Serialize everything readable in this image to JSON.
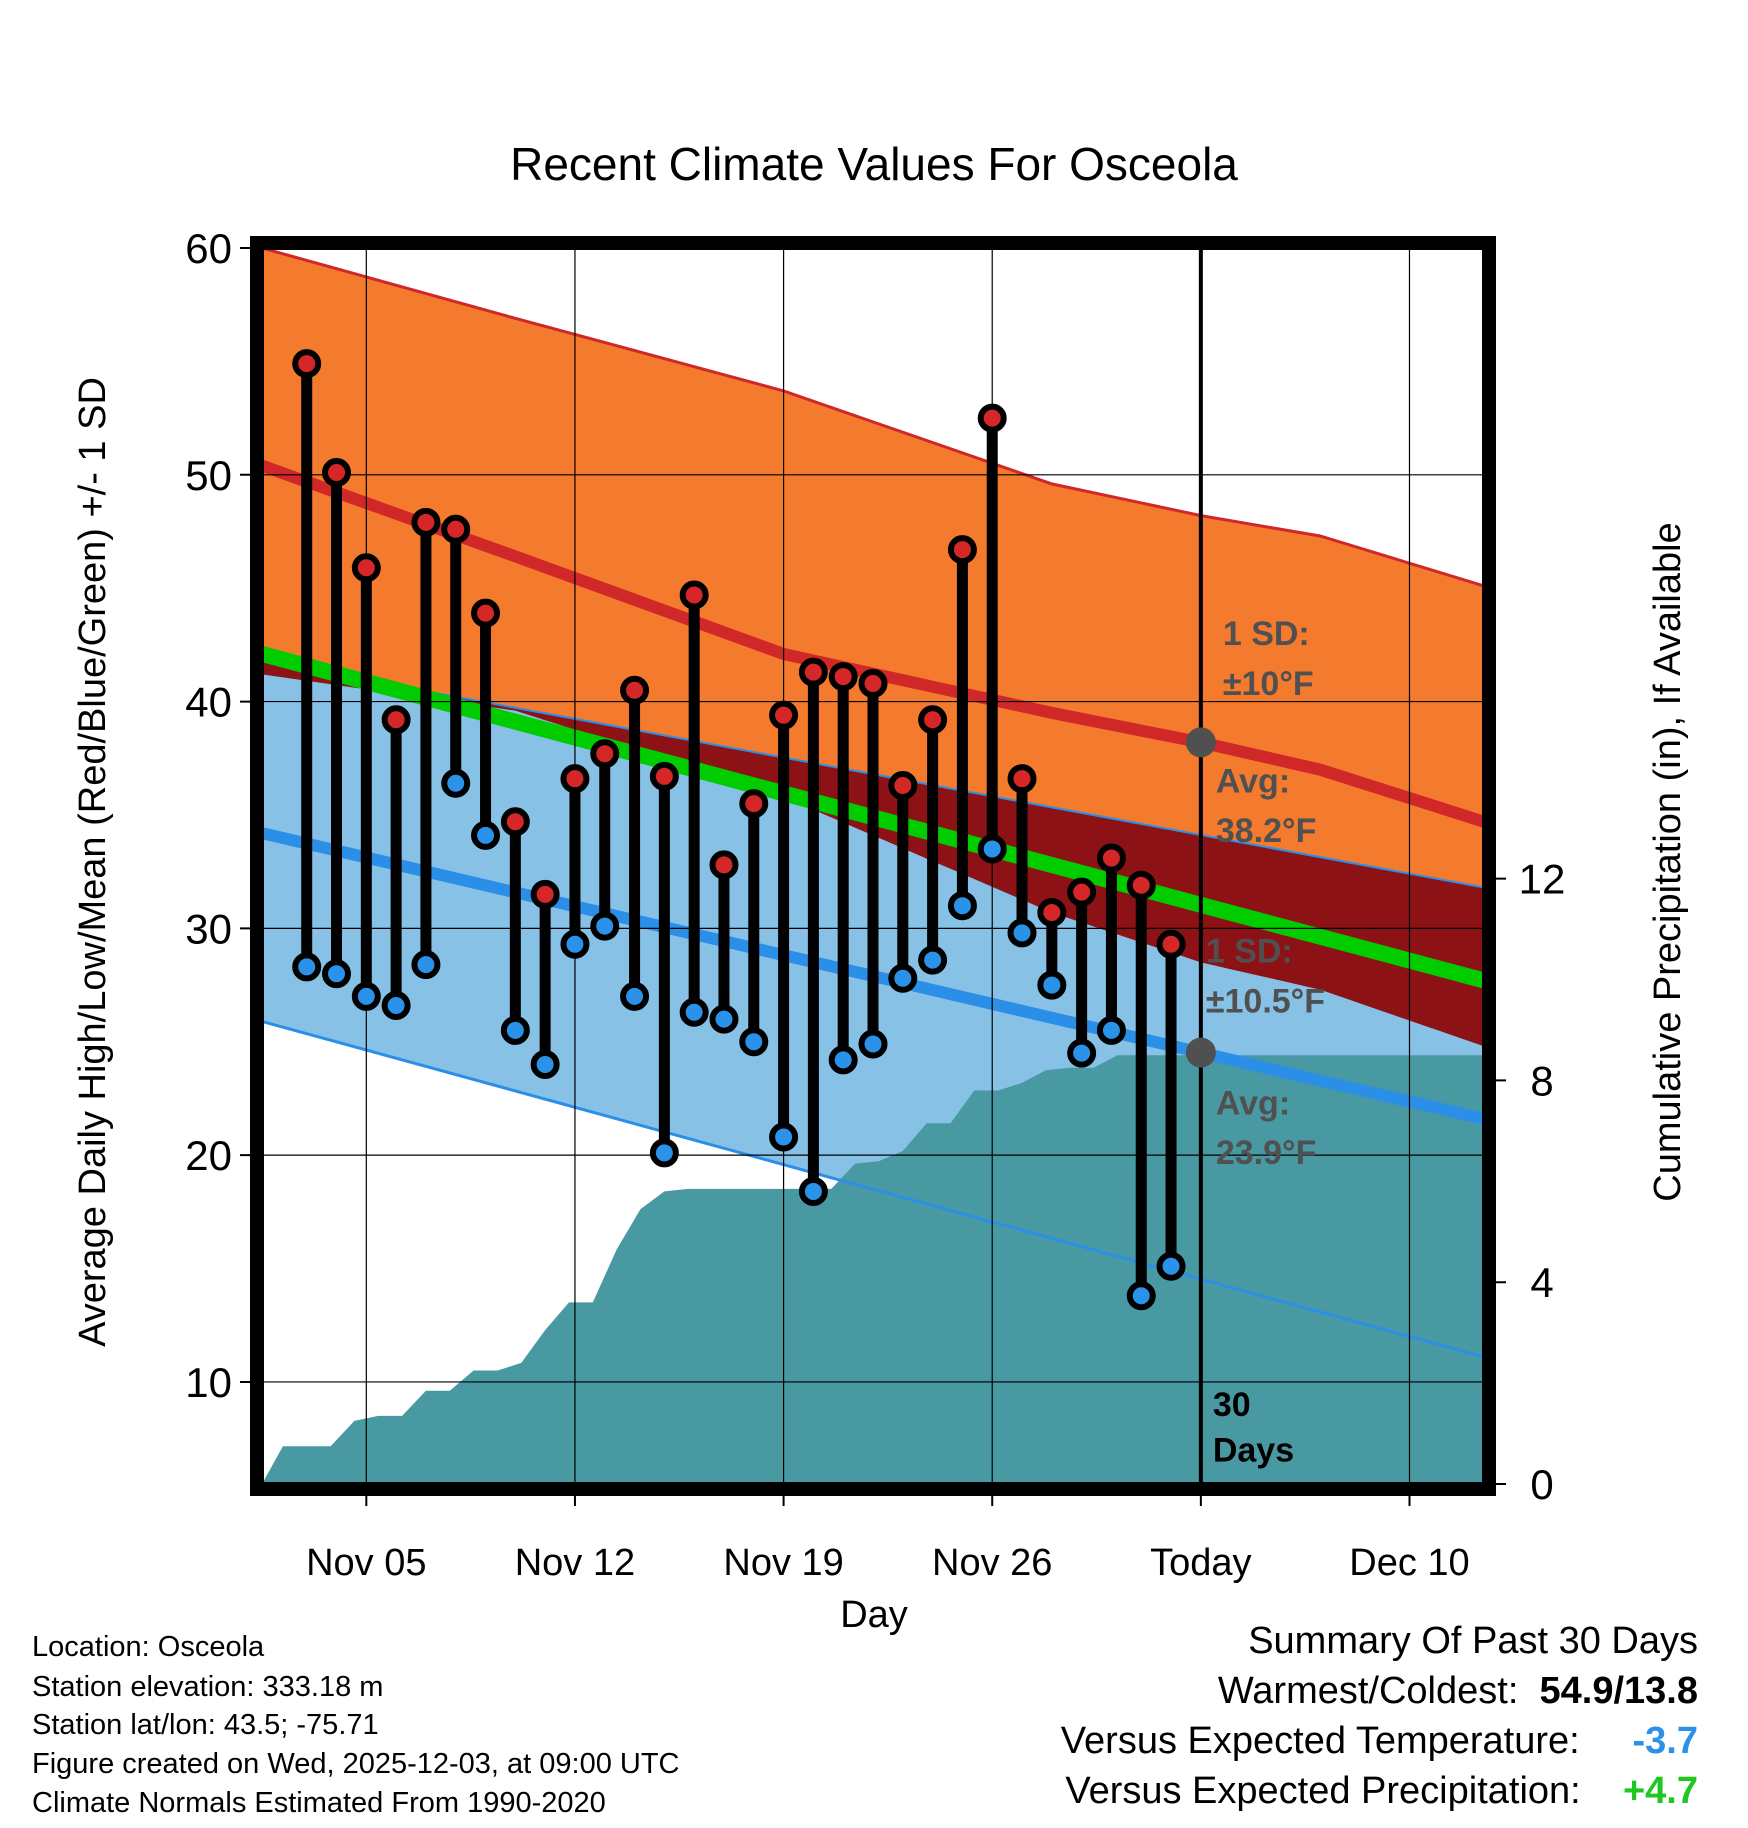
{
  "chart_data": {
    "type": "line",
    "title": "Recent Climate Values For Osceola",
    "xlabel": "Day",
    "ylabel": "Average Daily High/Low/Mean (Red/Blue/Green) +/- 1 SD",
    "y2label": "Cumulative Precipitation (in), If Available",
    "ylim": [
      5.5,
      60
    ],
    "y2lim": [
      0,
      24.5
    ],
    "xlim": [
      0.5,
      41.5
    ],
    "x_ticks": [
      {
        "day": 4,
        "label": "Nov 05"
      },
      {
        "day": 11,
        "label": "Nov 12"
      },
      {
        "day": 18,
        "label": "Nov 19"
      },
      {
        "day": 25,
        "label": "Nov 26"
      },
      {
        "day": 32,
        "label": "Today"
      },
      {
        "day": 39,
        "label": "Dec 10"
      }
    ],
    "y_ticks": [
      10,
      20,
      30,
      40,
      50,
      60
    ],
    "y2_ticks": [
      0,
      4,
      8,
      12
    ],
    "today_day": 32,
    "days": [
      2,
      3,
      4,
      5,
      6,
      7,
      8,
      9,
      10,
      11,
      12,
      13,
      14,
      15,
      16,
      17,
      18,
      19,
      20,
      21,
      22,
      23,
      24,
      25,
      26,
      27,
      28,
      29,
      30,
      31
    ],
    "highs": [
      54.9,
      50.1,
      45.9,
      39.2,
      47.9,
      47.6,
      43.9,
      34.7,
      31.5,
      36.6,
      37.7,
      40.5,
      36.7,
      44.7,
      32.8,
      35.5,
      39.4,
      41.3,
      41.1,
      40.8,
      36.3,
      39.2,
      46.7,
      52.5,
      36.6,
      30.7,
      31.6,
      33.1,
      31.9,
      29.3
    ],
    "lows": [
      28.3,
      28.0,
      27.0,
      26.6,
      28.4,
      36.4,
      34.1,
      25.5,
      24.0,
      29.3,
      30.1,
      27.0,
      20.1,
      26.3,
      26.0,
      25.0,
      20.8,
      18.4,
      24.2,
      24.9,
      27.8,
      28.6,
      31.0,
      33.5,
      29.8,
      27.5,
      24.5,
      25.5,
      13.8,
      15.1
    ],
    "normal_high": {
      "days": [
        0.5,
        9,
        18,
        27,
        32,
        36,
        41.5
      ],
      "avg": [
        50.4,
        46.4,
        42.1,
        39.5,
        38.2,
        37.0,
        34.7
      ],
      "plus1sd": [
        60.0,
        56.9,
        53.7,
        49.6,
        48.2,
        47.3,
        45.1
      ],
      "minus1sd": [
        41.2,
        39.6,
        35.8,
        30.7,
        28.5,
        27.3,
        24.8
      ],
      "sd_label": "1 SD:",
      "sd_value": "±10°F",
      "avg_label": "Avg:",
      "avg_value": "38.2°F"
    },
    "normal_mean": {
      "days": [
        0.5,
        41.5
      ],
      "values": [
        42.1,
        27.7
      ]
    },
    "normal_low": {
      "days": [
        0.5,
        41.5
      ],
      "avg": [
        34.2,
        21.6
      ],
      "plus1sd": [
        41.8,
        31.8
      ],
      "minus1sd": [
        25.9,
        11.1
      ],
      "sd_label": "1 SD:",
      "sd_value": "±10.5°F",
      "avg_label": "Avg:",
      "avg_value": "23.9°F"
    },
    "precip": {
      "days": [
        0.5,
        1.2,
        2,
        2.8,
        3.6,
        4.4,
        5.2,
        6,
        6.8,
        7.6,
        8.4,
        9.2,
        10,
        10.8,
        11.6,
        12.4,
        13.2,
        14,
        14.8,
        15.6,
        16.4,
        17.2,
        18,
        18.8,
        19.6,
        20.4,
        21.2,
        22,
        22.8,
        23.6,
        24.4,
        25.2,
        26,
        26.8,
        27.6,
        28.4,
        29.2,
        30,
        30.8,
        31.6,
        32.4,
        41.5
      ],
      "values": [
        0,
        0.75,
        0.75,
        0.75,
        1.25,
        1.35,
        1.35,
        1.85,
        1.85,
        2.25,
        2.25,
        2.4,
        3.05,
        3.6,
        3.6,
        4.65,
        5.45,
        5.8,
        5.85,
        5.85,
        5.85,
        5.85,
        5.85,
        5.85,
        5.85,
        6.35,
        6.4,
        6.6,
        7.15,
        7.15,
        7.8,
        7.8,
        7.95,
        8.2,
        8.25,
        8.25,
        8.5,
        8.5,
        8.5,
        8.5,
        8.5,
        8.5
      ]
    },
    "annotations": {
      "days_label": "30\nDays",
      "days_line1": "30",
      "days_line2": "Days"
    }
  },
  "info": {
    "location": "Location: Osceola",
    "elevation": "Station elevation: 333.18 m",
    "latlon": "Station lat/lon: 43.5; -75.71",
    "created": "Figure created on Wed, 2025-12-03, at 09:00 UTC",
    "normals": "Climate Normals Estimated From 1990-2020"
  },
  "summary": {
    "title": "Summary Of Past 30 Days",
    "warm_cold_label": "Warmest/Coldest:",
    "warm_cold_value": "54.9/13.8",
    "temp_label": "Versus Expected Temperature:",
    "temp_value": "-3.7",
    "precip_label": "Versus Expected Precipitation:",
    "precip_value": "+4.7"
  },
  "colors": {
    "high_band": "#f47a2e",
    "high_line": "#d02828",
    "overlap_band": "#8c1216",
    "mean_line": "#00cc00",
    "low_band": "#87c1e6",
    "low_line": "#2b8fe8",
    "precip": "#4999a2",
    "high_marker": "#d62728",
    "low_marker": "#2a92e8",
    "annot": "#505050",
    "temp_value": "#2a92e8",
    "precip_value": "#1ec81e"
  }
}
